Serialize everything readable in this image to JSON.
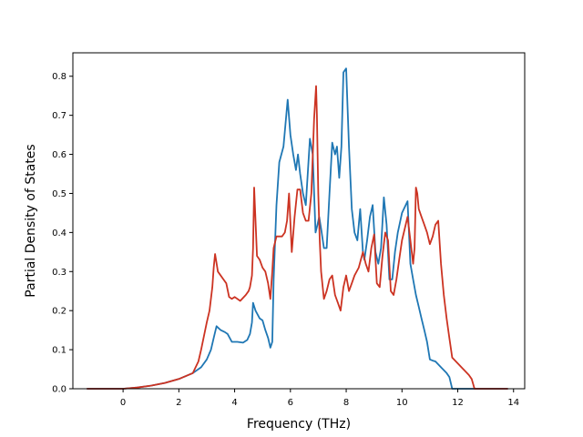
{
  "chart_data": {
    "type": "line",
    "xlabel": "Frequency (THz)",
    "ylabel": "Partial Density of States",
    "xlim": [
      -1.8,
      14.4
    ],
    "ylim": [
      0.0,
      0.86
    ],
    "xticks": [
      0,
      2,
      4,
      6,
      8,
      10,
      12,
      14
    ],
    "yticks": [
      0.0,
      0.1,
      0.2,
      0.3,
      0.4,
      0.5,
      0.6,
      0.7,
      0.8
    ],
    "grid": false,
    "legend": false,
    "series": [
      {
        "color": "#1f77b4",
        "x": [
          -1.3,
          0.0,
          0.5,
          1.0,
          1.5,
          2.0,
          2.5,
          2.8,
          3.0,
          3.15,
          3.25,
          3.35,
          3.5,
          3.65,
          3.75,
          3.9,
          4.1,
          4.3,
          4.45,
          4.55,
          4.62,
          4.66,
          4.75,
          4.9,
          5.0,
          5.1,
          5.2,
          5.28,
          5.35,
          5.4,
          5.5,
          5.6,
          5.75,
          5.9,
          6.0,
          6.1,
          6.2,
          6.27,
          6.35,
          6.45,
          6.55,
          6.7,
          6.8,
          6.9,
          6.97,
          7.03,
          7.1,
          7.2,
          7.3,
          7.4,
          7.5,
          7.6,
          7.67,
          7.75,
          7.83,
          7.9,
          8.0,
          8.1,
          8.2,
          8.3,
          8.4,
          8.5,
          8.6,
          8.65,
          8.75,
          8.85,
          8.95,
          9.05,
          9.15,
          9.25,
          9.35,
          9.45,
          9.55,
          9.65,
          9.75,
          9.85,
          10.0,
          10.2,
          10.3,
          10.4,
          10.5,
          10.6,
          10.7,
          10.8,
          10.9,
          11.0,
          11.1,
          11.2,
          11.4,
          11.6,
          11.7,
          11.8,
          12.0,
          13.8
        ],
        "y": [
          0.0,
          0.0,
          0.003,
          0.008,
          0.015,
          0.025,
          0.04,
          0.055,
          0.075,
          0.1,
          0.13,
          0.16,
          0.15,
          0.145,
          0.14,
          0.12,
          0.12,
          0.118,
          0.125,
          0.14,
          0.17,
          0.22,
          0.2,
          0.18,
          0.175,
          0.15,
          0.13,
          0.105,
          0.12,
          0.28,
          0.47,
          0.58,
          0.62,
          0.74,
          0.65,
          0.6,
          0.56,
          0.6,
          0.55,
          0.5,
          0.47,
          0.64,
          0.6,
          0.4,
          0.42,
          0.44,
          0.41,
          0.36,
          0.36,
          0.5,
          0.63,
          0.6,
          0.62,
          0.54,
          0.62,
          0.81,
          0.82,
          0.62,
          0.46,
          0.4,
          0.38,
          0.46,
          0.35,
          0.33,
          0.38,
          0.44,
          0.47,
          0.35,
          0.32,
          0.36,
          0.49,
          0.42,
          0.28,
          0.28,
          0.35,
          0.4,
          0.45,
          0.48,
          0.32,
          0.28,
          0.24,
          0.21,
          0.18,
          0.15,
          0.12,
          0.075,
          0.072,
          0.07,
          0.055,
          0.04,
          0.03,
          0.0,
          0.0,
          0.0
        ]
      },
      {
        "color": "#cc3322",
        "x": [
          -1.3,
          0.0,
          0.5,
          1.0,
          1.5,
          2.0,
          2.5,
          2.7,
          2.8,
          3.0,
          3.1,
          3.2,
          3.25,
          3.3,
          3.4,
          3.6,
          3.7,
          3.8,
          3.9,
          4.0,
          4.2,
          4.4,
          4.5,
          4.55,
          4.62,
          4.66,
          4.7,
          4.8,
          4.9,
          5.0,
          5.1,
          5.2,
          5.28,
          5.35,
          5.4,
          5.5,
          5.6,
          5.7,
          5.8,
          5.88,
          5.95,
          6.05,
          6.15,
          6.25,
          6.35,
          6.45,
          6.55,
          6.65,
          6.75,
          6.85,
          6.92,
          6.95,
          7.0,
          7.05,
          7.1,
          7.2,
          7.3,
          7.4,
          7.5,
          7.6,
          7.7,
          7.8,
          7.9,
          8.0,
          8.1,
          8.2,
          8.3,
          8.45,
          8.6,
          8.7,
          8.8,
          8.9,
          9.0,
          9.1,
          9.2,
          9.3,
          9.4,
          9.5,
          9.6,
          9.7,
          9.8,
          9.9,
          10.0,
          10.2,
          10.3,
          10.4,
          10.45,
          10.5,
          10.55,
          10.6,
          10.7,
          10.8,
          10.9,
          11.0,
          11.1,
          11.2,
          11.3,
          11.4,
          11.5,
          11.6,
          11.7,
          11.8,
          12.0,
          12.2,
          12.4,
          12.5,
          12.6,
          13.8
        ],
        "y": [
          0.0,
          0.0,
          0.003,
          0.008,
          0.015,
          0.025,
          0.04,
          0.07,
          0.1,
          0.17,
          0.2,
          0.26,
          0.31,
          0.345,
          0.3,
          0.28,
          0.27,
          0.235,
          0.23,
          0.235,
          0.225,
          0.24,
          0.25,
          0.26,
          0.29,
          0.36,
          0.515,
          0.34,
          0.33,
          0.31,
          0.3,
          0.27,
          0.23,
          0.3,
          0.36,
          0.39,
          0.39,
          0.39,
          0.4,
          0.43,
          0.5,
          0.35,
          0.44,
          0.51,
          0.51,
          0.45,
          0.43,
          0.43,
          0.5,
          0.69,
          0.775,
          0.7,
          0.5,
          0.38,
          0.3,
          0.23,
          0.25,
          0.28,
          0.29,
          0.24,
          0.22,
          0.2,
          0.26,
          0.29,
          0.25,
          0.27,
          0.29,
          0.31,
          0.35,
          0.32,
          0.3,
          0.36,
          0.395,
          0.27,
          0.26,
          0.34,
          0.4,
          0.38,
          0.25,
          0.24,
          0.28,
          0.33,
          0.38,
          0.44,
          0.38,
          0.32,
          0.36,
          0.515,
          0.5,
          0.46,
          0.44,
          0.42,
          0.4,
          0.37,
          0.39,
          0.42,
          0.43,
          0.32,
          0.24,
          0.18,
          0.13,
          0.08,
          0.065,
          0.05,
          0.035,
          0.025,
          0.0,
          0.0
        ]
      }
    ]
  }
}
